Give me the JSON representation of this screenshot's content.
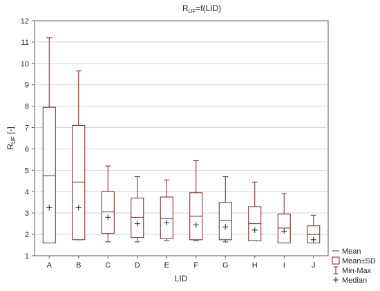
{
  "chart_data": {
    "type": "boxplot",
    "title": "R",
    "title_sub": "UF",
    "title_rest": "=f(LID)",
    "ylabel": "R",
    "ylabel_sub": "UF",
    "ylabel_rest": " [-]",
    "xlabel": "LID",
    "ylim": [
      1,
      12
    ],
    "yticks": [
      1,
      2,
      3,
      4,
      5,
      6,
      7,
      8,
      9,
      10,
      11,
      12
    ],
    "grid": true,
    "legend_position": "right",
    "box_color": "#7a1f1f",
    "categories": [
      "A",
      "B",
      "C",
      "D",
      "E",
      "F",
      "G",
      "H",
      "I",
      "J"
    ],
    "series": [
      {
        "category": "A",
        "min": 1.6,
        "max": 11.2,
        "mean": 4.75,
        "sd_low": 1.6,
        "sd_high": 7.95,
        "median": 3.25
      },
      {
        "category": "B",
        "min": 1.75,
        "max": 9.65,
        "mean": 4.45,
        "sd_low": 1.75,
        "sd_high": 7.1,
        "median": 3.25
      },
      {
        "category": "C",
        "min": 1.65,
        "max": 5.2,
        "mean": 3.05,
        "sd_low": 2.05,
        "sd_high": 4.0,
        "median": 2.8
      },
      {
        "category": "D",
        "min": 1.65,
        "max": 4.7,
        "mean": 2.8,
        "sd_low": 1.85,
        "sd_high": 3.7,
        "median": 2.5
      },
      {
        "category": "E",
        "min": 1.7,
        "max": 4.55,
        "mean": 2.75,
        "sd_low": 1.8,
        "sd_high": 3.75,
        "median": 2.55
      },
      {
        "category": "F",
        "min": 1.7,
        "max": 5.45,
        "mean": 2.85,
        "sd_low": 1.75,
        "sd_high": 3.95,
        "median": 2.45
      },
      {
        "category": "G",
        "min": 1.65,
        "max": 4.7,
        "mean": 2.65,
        "sd_low": 1.75,
        "sd_high": 3.5,
        "median": 2.35
      },
      {
        "category": "H",
        "min": 1.7,
        "max": 4.45,
        "mean": 2.5,
        "sd_low": 1.7,
        "sd_high": 3.3,
        "median": 2.2
      },
      {
        "category": "I",
        "min": 1.6,
        "max": 3.9,
        "mean": 2.3,
        "sd_low": 1.6,
        "sd_high": 2.95,
        "median": 2.15
      },
      {
        "category": "J",
        "min": 1.6,
        "max": 2.9,
        "mean": 2.0,
        "sd_low": 1.6,
        "sd_high": 2.4,
        "median": 1.75
      }
    ],
    "legend": [
      {
        "symbol": "line",
        "label": "Mean"
      },
      {
        "symbol": "box",
        "label": "Mean±SD"
      },
      {
        "symbol": "whisker",
        "label": "Min-Max"
      },
      {
        "symbol": "plus",
        "label": "Median"
      }
    ]
  }
}
